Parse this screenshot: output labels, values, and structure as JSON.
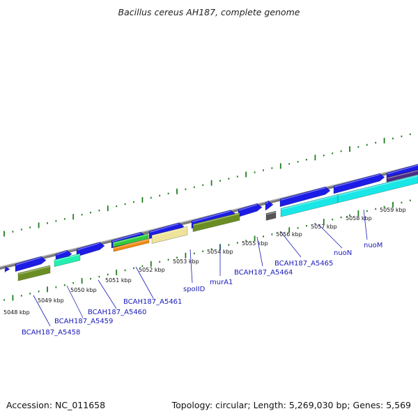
{
  "title": "Bacillus cereus AH187, complete genome",
  "footer": {
    "accession": "Accession: NC_011658",
    "stats": "Topology: circular; Length: 5,269,030 bp; Genes: 5,569"
  },
  "colors": {
    "backbone": "#8a8a8a",
    "ticks": "#1e7d1e",
    "gene_label": "#1a1ab8",
    "cds_forward": "#1c1ce6",
    "cyan": "#19e6e6",
    "olive": "#6b8e23",
    "aquamarine": "#22f0b0",
    "green": "#2ecc40",
    "orange": "#f28a0f",
    "khaki": "#eee39a",
    "gray": "#555555",
    "purple": "#4b2c85"
  },
  "kbp_ticks": [
    "5048 kbp",
    "5049 kbp",
    "5050 kbp",
    "5051 kbp",
    "5052 kbp",
    "5053 kbp",
    "5054 kbp",
    "5055 kbp",
    "5056 kbp",
    "5057 kbp",
    "5058 kbp",
    "5059 kbp"
  ],
  "gene_labels": [
    "BCAH187_A5458",
    "BCAH187_A5459",
    "BCAH187_A5460",
    "BCAH187_A5461",
    "spoIID",
    "murA1",
    "BCAH187_A5464",
    "BCAH187_A5465",
    "nuoN",
    "nuoM"
  ]
}
